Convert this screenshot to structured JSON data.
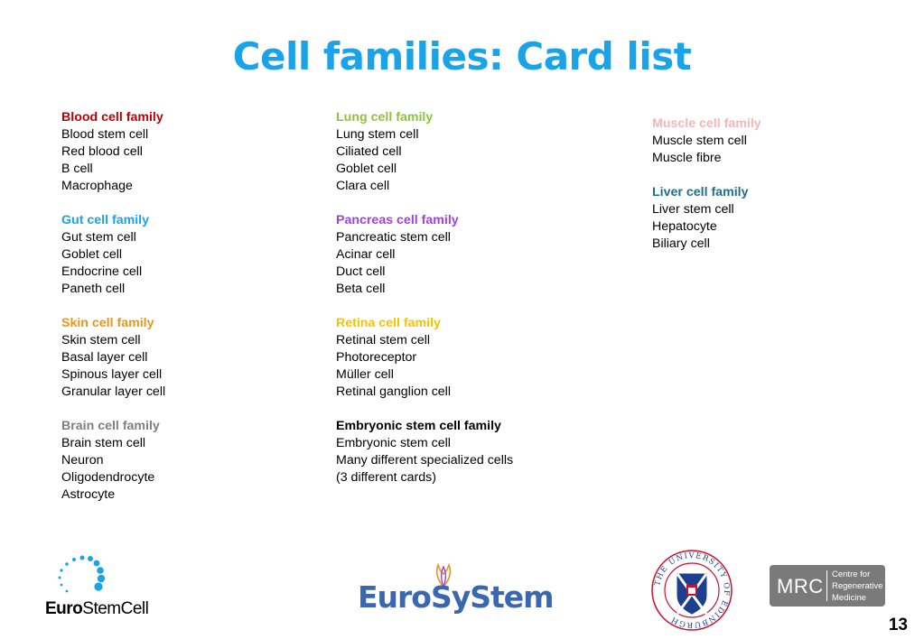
{
  "slide": {
    "title": "Cell families: Card list",
    "title_color": "#1aa3e8",
    "page_number": "13"
  },
  "columns": [
    {
      "families": [
        {
          "heading": "Blood cell family",
          "color": "#c00000",
          "items": [
            "Blood stem cell",
            "Red blood cell",
            "B cell",
            "Macrophage"
          ]
        },
        {
          "heading": "Gut cell family",
          "color": "#1aa3e8",
          "items": [
            "Gut stem cell",
            "Goblet cell",
            "Endocrine cell",
            "Paneth cell"
          ]
        },
        {
          "heading": "Skin cell family",
          "color": "#e8961a",
          "items": [
            "Skin stem cell",
            "Basal layer cell",
            "Spinous layer cell",
            "Granular layer cell"
          ]
        },
        {
          "heading": "Brain cell family",
          "color": "#7f7f7f",
          "items": [
            "Brain stem cell",
            "Neuron",
            "Oligodendrocyte",
            "Astrocyte"
          ]
        }
      ]
    },
    {
      "families": [
        {
          "heading": "Lung cell family",
          "color": "#8cc43c",
          "items": [
            "Lung stem cell",
            "Ciliated cell",
            "Goblet cell",
            "Clara cell"
          ]
        },
        {
          "heading": "Pancreas cell family",
          "color": "#a040e0",
          "items": [
            "Pancreatic stem cell",
            "Acinar cell",
            "Duct cell",
            "Beta cell"
          ]
        },
        {
          "heading": "Retina cell family",
          "color": "#f5c400",
          "items": [
            "Retinal stem cell",
            "Photoreceptor",
            "Müller cell",
            "Retinal ganglion cell"
          ]
        },
        {
          "heading": "Embryonic stem cell family",
          "color": "#000000",
          "items": [
            "Embryonic stem cell",
            "Many different specialized cells",
            "(3 different cards)"
          ]
        }
      ]
    },
    {
      "families": [
        {
          "heading": "Muscle cell family",
          "color": "#f4b6b6",
          "items": [
            "Muscle stem cell",
            "Muscle fibre"
          ]
        },
        {
          "heading": "Liver cell family",
          "color": "#1f6f8b",
          "items": [
            "Liver stem cell",
            "Hepatocyte",
            "Biliary cell"
          ]
        }
      ]
    }
  ],
  "logos": {
    "eurostemcell": {
      "bold": "Euro",
      "thin": "StemCell",
      "icon": "stem-cell-dots-icon"
    },
    "eurosystem": {
      "text": "EuroSyStem",
      "icon": "tulip-icon"
    },
    "edinburgh": {
      "ring_text": "THE UNIVERSITY OF EDINBURGH",
      "icon": "university-crest-icon"
    },
    "mrc": {
      "big": "MRC",
      "line1": "Centre for",
      "line2": "Regenerative",
      "line3": "Medicine"
    }
  }
}
